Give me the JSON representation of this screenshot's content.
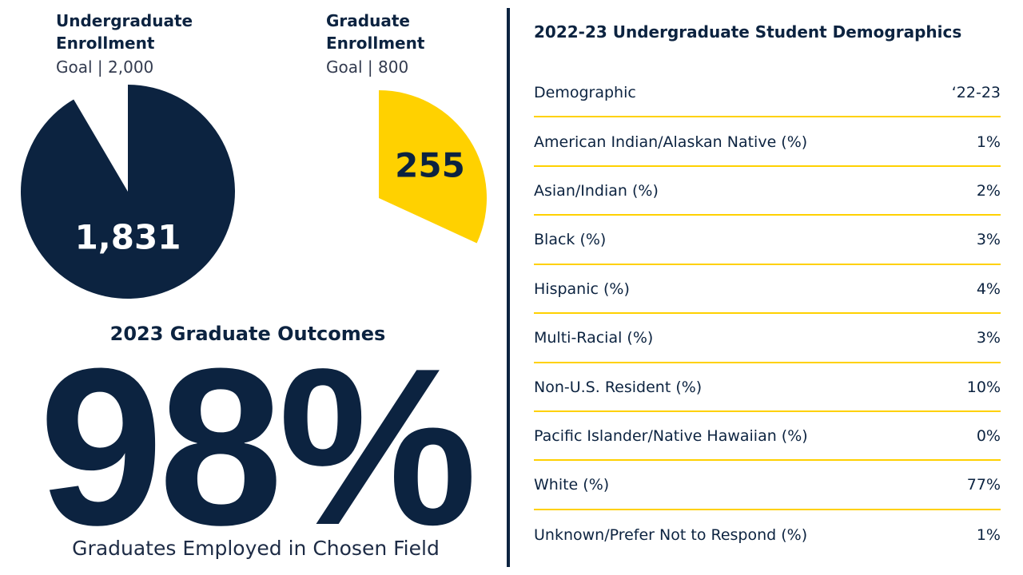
{
  "enrollment": [
    {
      "title": "Undergraduate Enrollment",
      "goal_label": "Goal |",
      "goal": {
        "value": 2000,
        "label": "2,000"
      },
      "value": 1831,
      "value_label": "1,831",
      "color": "#0c2340",
      "label_color": "#ffffff"
    },
    {
      "title": "Graduate Enrollment",
      "goal_label": "Goal |",
      "goal": {
        "value": 800,
        "label": "800"
      },
      "value": 255,
      "color": "#ffd100",
      "label_color": "#0c2340"
    }
  ],
  "outcomes": {
    "title": "2023 Graduate Outcomes",
    "value": 98,
    "value_label": "98%",
    "caption": "Graduates Employed in Chosen Field"
  },
  "table": {
    "title": "2022-23 Undergraduate Student Demographics",
    "header": [
      "Demographic",
      "‘22-23"
    ],
    "rows": [
      [
        "American Indian/Alaskan Native (%)",
        "1%"
      ],
      [
        "Asian/Indian (%)",
        "2%"
      ],
      [
        "Black (%)",
        "3%"
      ],
      [
        "Hispanic (%)",
        "4%"
      ],
      [
        "Multi-Racial (%)",
        "3%"
      ],
      [
        "Non-U.S. Resident (%)",
        "10%"
      ],
      [
        "Pacific Islander/Native Hawaiian (%)",
        "0%"
      ],
      [
        "White (%)",
        "77%"
      ],
      [
        "Unknown/Prefer Not to Respond (%)",
        "1%"
      ]
    ]
  }
}
